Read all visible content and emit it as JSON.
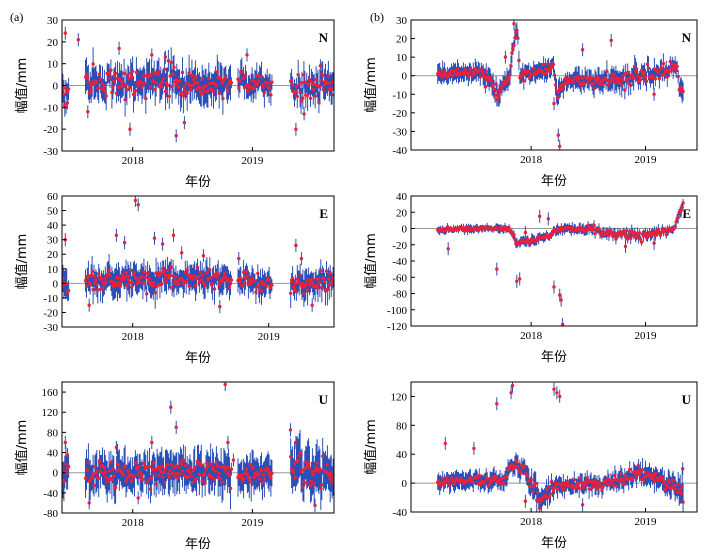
{
  "figure": {
    "labels": {
      "left": "(a)",
      "right": "(b)"
    }
  },
  "chart_data": [
    {
      "id": "a-N",
      "type": "scatter",
      "panel": "(a)",
      "component": "N",
      "xlabel": "年份",
      "ylabel": "幅值/mm",
      "ylim": [
        -30,
        30
      ],
      "yticks": [
        -30,
        -20,
        -10,
        0,
        10,
        20,
        30
      ],
      "xticks": [
        {
          "label": "2018",
          "t": 0.26
        },
        {
          "label": "2019",
          "t": 0.7
        }
      ],
      "trend": [
        [
          0.0,
          0,
          3,
          6
        ],
        [
          0.01,
          -5,
          5,
          5
        ],
        [
          0.09,
          1,
          5,
          6
        ],
        [
          0.4,
          2,
          6,
          6
        ],
        [
          0.52,
          0,
          5,
          6
        ],
        [
          0.62,
          1,
          5,
          6
        ],
        [
          0.625,
          null,
          0,
          0
        ],
        [
          0.645,
          2,
          4,
          5
        ],
        [
          0.77,
          0,
          4,
          5
        ],
        [
          0.775,
          null,
          0,
          0
        ],
        [
          0.84,
          -2,
          5,
          5
        ],
        [
          0.98,
          0,
          5,
          6
        ]
      ],
      "outliers": [
        [
          0.012,
          24
        ],
        [
          0.015,
          -10
        ],
        [
          0.02,
          -8
        ],
        [
          0.06,
          21
        ],
        [
          0.095,
          -12
        ],
        [
          0.21,
          17
        ],
        [
          0.25,
          -20
        ],
        [
          0.33,
          14
        ],
        [
          0.38,
          13
        ],
        [
          0.42,
          -23
        ],
        [
          0.45,
          -17
        ],
        [
          0.68,
          14
        ],
        [
          0.86,
          -20
        ],
        [
          0.89,
          -13
        ],
        [
          0.95,
          9
        ]
      ]
    },
    {
      "id": "b-N",
      "type": "scatter",
      "panel": "(b)",
      "component": "N",
      "xlabel": "年份",
      "ylabel": "幅值/mm",
      "ylim": [
        -40,
        30
      ],
      "yticks": [
        -40,
        -30,
        -20,
        -10,
        0,
        10,
        20,
        30
      ],
      "xticks": [
        {
          "label": "2018",
          "t": 0.42
        },
        {
          "label": "2019",
          "t": 0.82
        }
      ],
      "trend": [
        [
          0.0,
          null,
          0,
          0
        ],
        [
          0.09,
          1,
          2,
          4
        ],
        [
          0.25,
          2,
          2,
          4
        ],
        [
          0.28,
          -3,
          3,
          5
        ],
        [
          0.3,
          -10,
          3,
          5
        ],
        [
          0.34,
          -2,
          3,
          4
        ],
        [
          0.37,
          27,
          2,
          4
        ],
        [
          0.38,
          0,
          3,
          4
        ],
        [
          0.48,
          4,
          2,
          4
        ],
        [
          0.5,
          6,
          2,
          4
        ],
        [
          0.51,
          -12,
          3,
          5
        ],
        [
          0.54,
          -2,
          2,
          4
        ],
        [
          0.7,
          -3,
          4,
          5
        ],
        [
          0.8,
          0,
          5,
          5
        ],
        [
          0.9,
          3,
          3,
          4
        ],
        [
          0.93,
          5,
          3,
          4
        ],
        [
          0.94,
          -8,
          3,
          5
        ]
      ],
      "outliers": [
        [
          0.36,
          28
        ],
        [
          0.3,
          -13
        ],
        [
          0.5,
          -15
        ],
        [
          0.515,
          -32
        ],
        [
          0.52,
          -38
        ],
        [
          0.26,
          -6
        ],
        [
          0.33,
          10
        ],
        [
          0.6,
          14
        ],
        [
          0.7,
          19
        ],
        [
          0.85,
          -10
        ]
      ]
    },
    {
      "id": "a-E",
      "type": "scatter",
      "panel": "(a)",
      "component": "E",
      "xlabel": "年份",
      "ylabel": "幅值/mm",
      "ylim": [
        -30,
        60
      ],
      "yticks": [
        -30,
        -20,
        -10,
        0,
        10,
        20,
        30,
        40,
        50,
        60
      ],
      "xticks": [
        {
          "label": "2018",
          "t": 0.26
        },
        {
          "label": "2019",
          "t": 0.76
        }
      ],
      "trend": [
        [
          0.0,
          0,
          4,
          8
        ],
        [
          0.01,
          0,
          6,
          8
        ],
        [
          0.09,
          1,
          6,
          8
        ],
        [
          0.3,
          3,
          7,
          8
        ],
        [
          0.45,
          4,
          7,
          8
        ],
        [
          0.62,
          1,
          6,
          8
        ],
        [
          0.625,
          null,
          0,
          0
        ],
        [
          0.645,
          2,
          5,
          7
        ],
        [
          0.77,
          0,
          5,
          7
        ],
        [
          0.775,
          null,
          0,
          0
        ],
        [
          0.84,
          -1,
          6,
          8
        ],
        [
          0.98,
          0,
          6,
          8
        ]
      ],
      "outliers": [
        [
          0.012,
          30
        ],
        [
          0.2,
          33
        ],
        [
          0.23,
          28
        ],
        [
          0.27,
          57
        ],
        [
          0.28,
          54
        ],
        [
          0.34,
          31
        ],
        [
          0.37,
          27
        ],
        [
          0.41,
          33
        ],
        [
          0.44,
          21
        ],
        [
          0.52,
          19
        ],
        [
          0.58,
          -16
        ],
        [
          0.65,
          17
        ],
        [
          0.86,
          26
        ],
        [
          0.88,
          17
        ],
        [
          0.92,
          -15
        ],
        [
          0.1,
          -15
        ]
      ]
    },
    {
      "id": "b-E",
      "type": "scatter",
      "panel": "(b)",
      "component": "E",
      "xlabel": "年份",
      "ylabel": "幅值/mm",
      "ylim": [
        -120,
        40
      ],
      "yticks": [
        -120,
        -100,
        -80,
        -60,
        -40,
        -20,
        0,
        20,
        40
      ],
      "xticks": [
        {
          "label": "2018",
          "t": 0.42
        },
        {
          "label": "2019",
          "t": 0.82
        }
      ],
      "trend": [
        [
          0.0,
          null,
          0,
          0
        ],
        [
          0.09,
          -2,
          2,
          4
        ],
        [
          0.2,
          0,
          2,
          4
        ],
        [
          0.34,
          0,
          2,
          4
        ],
        [
          0.35,
          -3,
          3,
          5
        ],
        [
          0.36,
          -10,
          3,
          5
        ],
        [
          0.37,
          -20,
          3,
          5
        ],
        [
          0.47,
          -10,
          3,
          5
        ],
        [
          0.52,
          0,
          3,
          5
        ],
        [
          0.6,
          0,
          3,
          5
        ],
        [
          0.7,
          -5,
          5,
          5
        ],
        [
          0.8,
          -10,
          5,
          6
        ],
        [
          0.87,
          -5,
          4,
          5
        ],
        [
          0.92,
          0,
          3,
          4
        ],
        [
          0.94,
          20,
          4,
          6
        ],
        [
          0.95,
          28,
          4,
          6
        ]
      ],
      "outliers": [
        [
          0.13,
          -25
        ],
        [
          0.3,
          -50
        ],
        [
          0.37,
          -65
        ],
        [
          0.38,
          -62
        ],
        [
          0.5,
          -72
        ],
        [
          0.52,
          -82
        ],
        [
          0.525,
          -88
        ],
        [
          0.53,
          -118
        ],
        [
          0.4,
          -5
        ],
        [
          0.45,
          15
        ],
        [
          0.48,
          12
        ],
        [
          0.75,
          -22
        ],
        [
          0.85,
          -18
        ]
      ]
    },
    {
      "id": "a-U",
      "type": "scatter",
      "panel": "(a)",
      "component": "U",
      "xlabel": "年份",
      "ylabel": "幅值/mm",
      "ylim": [
        -80,
        180
      ],
      "yticks": [
        -80,
        -40,
        0,
        40,
        80,
        120,
        160
      ],
      "xticks": [
        {
          "label": "2018",
          "t": 0.26
        },
        {
          "label": "2019",
          "t": 0.7
        }
      ],
      "trend": [
        [
          0.0,
          0,
          15,
          30
        ],
        [
          0.01,
          10,
          20,
          30
        ],
        [
          0.09,
          -5,
          20,
          30
        ],
        [
          0.3,
          0,
          20,
          30
        ],
        [
          0.45,
          5,
          20,
          30
        ],
        [
          0.62,
          0,
          20,
          30
        ],
        [
          0.625,
          null,
          0,
          0
        ],
        [
          0.645,
          -5,
          18,
          28
        ],
        [
          0.77,
          0,
          18,
          28
        ],
        [
          0.775,
          null,
          0,
          0
        ],
        [
          0.84,
          10,
          25,
          35
        ],
        [
          0.98,
          -5,
          25,
          35
        ]
      ],
      "outliers": [
        [
          0.012,
          60
        ],
        [
          0.02,
          35
        ],
        [
          0.2,
          50
        ],
        [
          0.33,
          60
        ],
        [
          0.4,
          130
        ],
        [
          0.42,
          90
        ],
        [
          0.6,
          175
        ],
        [
          0.61,
          60
        ],
        [
          0.63,
          25
        ],
        [
          0.84,
          85
        ],
        [
          0.86,
          60
        ],
        [
          0.9,
          -20
        ],
        [
          0.93,
          -65
        ],
        [
          0.1,
          -60
        ],
        [
          0.28,
          -50
        ]
      ]
    },
    {
      "id": "b-U",
      "type": "scatter",
      "panel": "(b)",
      "component": "U",
      "xlabel": "年份",
      "ylabel": "幅值/mm",
      "ylim": [
        -40,
        140
      ],
      "yticks": [
        -40,
        0,
        40,
        80,
        120
      ],
      "xticks": [
        {
          "label": "2018",
          "t": 0.42
        },
        {
          "label": "2019",
          "t": 0.82
        }
      ],
      "trend": [
        [
          0.0,
          null,
          0,
          0
        ],
        [
          0.09,
          0,
          5,
          10
        ],
        [
          0.2,
          5,
          5,
          10
        ],
        [
          0.33,
          3,
          6,
          10
        ],
        [
          0.35,
          30,
          8,
          12
        ],
        [
          0.37,
          20,
          8,
          12
        ],
        [
          0.4,
          15,
          8,
          12
        ],
        [
          0.45,
          -20,
          10,
          15
        ],
        [
          0.48,
          -10,
          8,
          12
        ],
        [
          0.52,
          -5,
          6,
          10
        ],
        [
          0.7,
          0,
          6,
          10
        ],
        [
          0.8,
          15,
          8,
          12
        ],
        [
          0.9,
          0,
          8,
          12
        ],
        [
          0.94,
          -10,
          10,
          14
        ],
        [
          0.95,
          -20,
          12,
          20
        ]
      ],
      "outliers": [
        [
          0.12,
          55
        ],
        [
          0.22,
          48
        ],
        [
          0.3,
          110
        ],
        [
          0.35,
          125
        ],
        [
          0.355,
          135
        ],
        [
          0.5,
          130
        ],
        [
          0.51,
          125
        ],
        [
          0.52,
          120
        ],
        [
          0.4,
          -25
        ],
        [
          0.45,
          -35
        ],
        [
          0.6,
          -30
        ],
        [
          0.95,
          20
        ]
      ]
    }
  ]
}
